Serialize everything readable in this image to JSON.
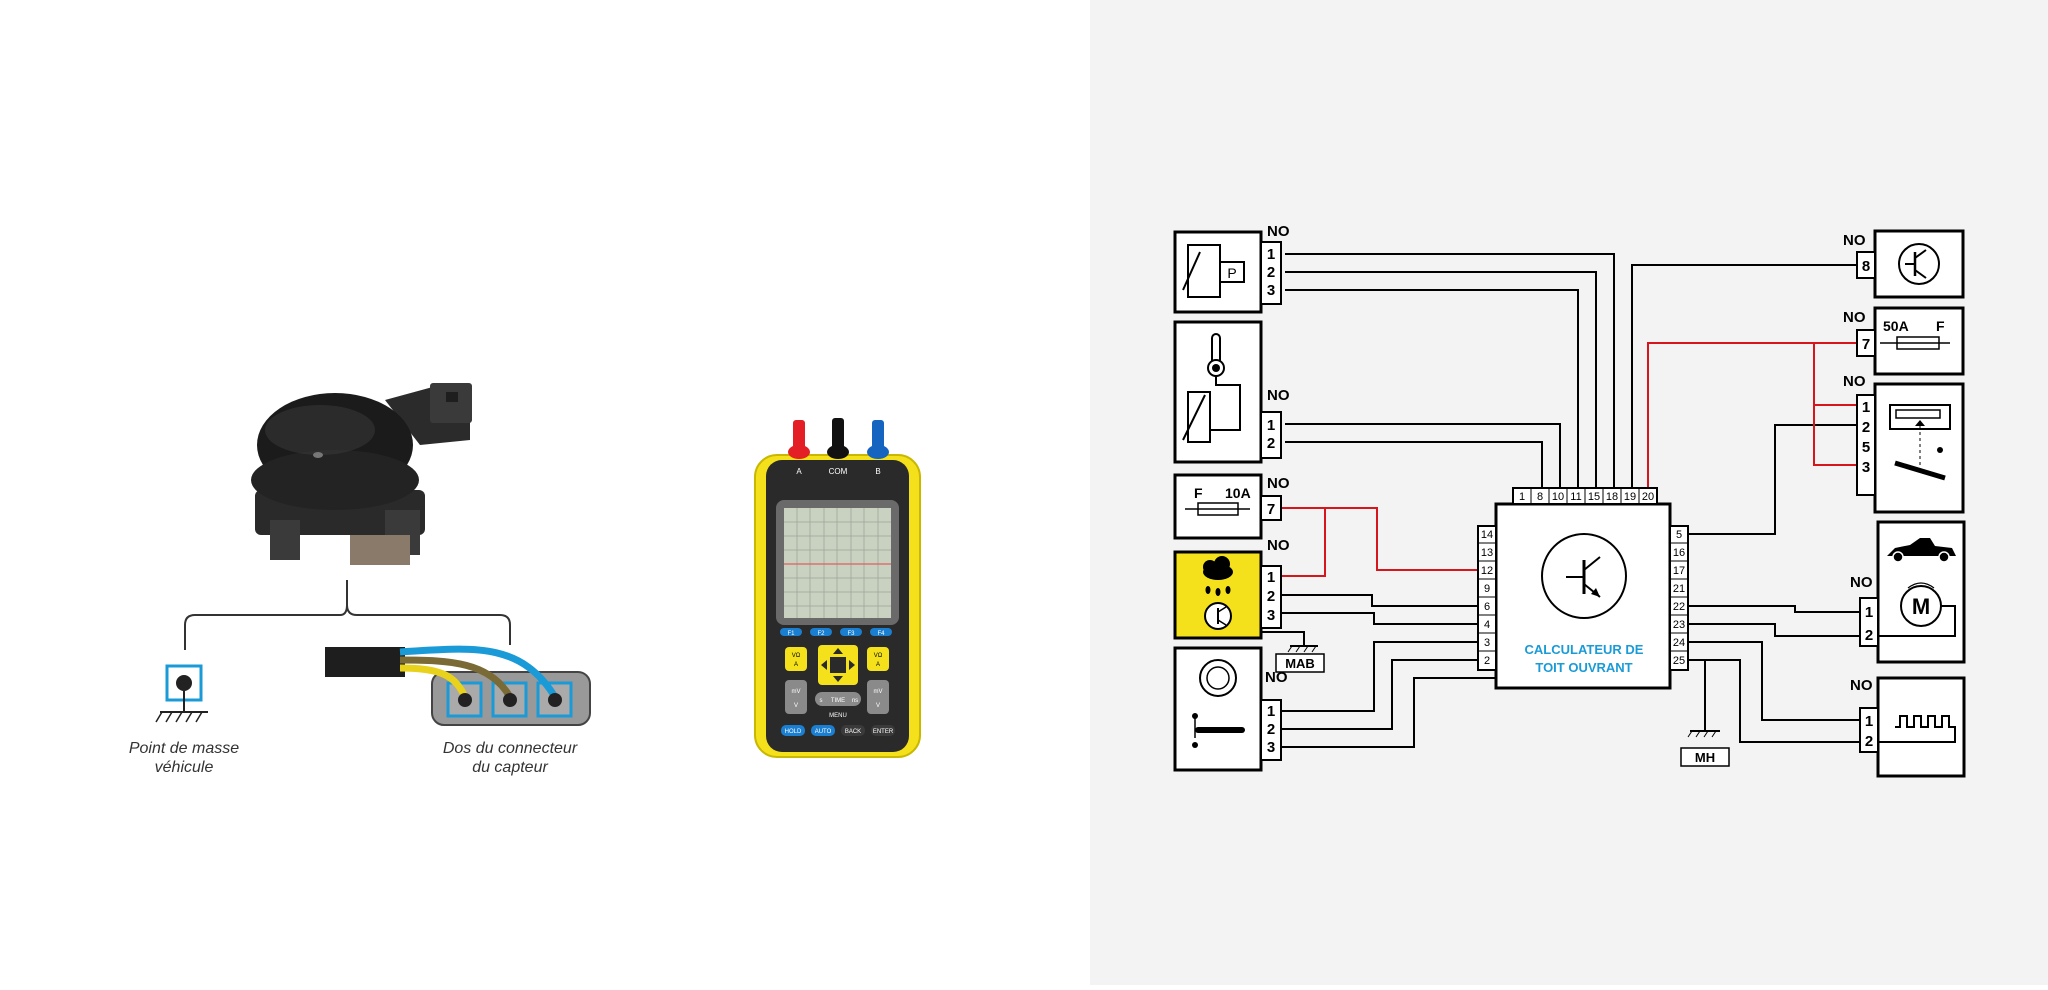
{
  "sensor": {
    "ground_caption": [
      "Point de masse",
      "véhicule"
    ],
    "connector_caption": [
      "Dos du connecteur",
      "du capteur"
    ]
  },
  "multimeter": {
    "probe_labels": [
      "A",
      "COM",
      "B"
    ],
    "fkeys": [
      "F1",
      "F2",
      "F3",
      "F4"
    ],
    "left_top": [
      "VΩ",
      "A"
    ],
    "right_top": [
      "VΩ",
      "A"
    ],
    "left_bottom": [
      "mV",
      "V"
    ],
    "right_bottom": [
      "mV",
      "V"
    ],
    "time_label": "TIME",
    "time_left": "s",
    "time_right": "ns",
    "menu_label": "MENU",
    "bottom_buttons": [
      "HOLD",
      "AUTO",
      "BACK",
      "ENTER"
    ]
  },
  "diagram": {
    "no_label": "NO",
    "ecu_label": [
      "CALCULATEUR DE",
      "TOIT OUVRANT"
    ],
    "ecu_top_pins": [
      "1",
      "8",
      "10",
      "11",
      "15",
      "18",
      "19",
      "20"
    ],
    "ecu_left_pins": [
      "14",
      "13",
      "12",
      "9",
      "6",
      "4",
      "3",
      "2"
    ],
    "ecu_right_pins": [
      "5",
      "16",
      "17",
      "21",
      "22",
      "23",
      "24",
      "25"
    ],
    "pressure_sensor": {
      "label": "P",
      "pins": [
        "1",
        "2",
        "3"
      ]
    },
    "temp_sensor": {
      "pins": [
        "1",
        "2"
      ]
    },
    "fuse_10a": {
      "letter": "F",
      "rating": "10A",
      "pin": "7"
    },
    "rain_sensor": {
      "pins": [
        "1",
        "2",
        "3"
      ]
    },
    "selector": {
      "pins": [
        "1",
        "2",
        "3"
      ]
    },
    "ground_mab": "MAB",
    "ground_mh": "MH",
    "module_8": {
      "pin": "8"
    },
    "fuse_50a": {
      "rating": "50A",
      "letter": "F",
      "pin": "7"
    },
    "position_sensor": {
      "pins": [
        "1",
        "2",
        "5",
        "3"
      ]
    },
    "motor": {
      "label": "M",
      "pins": [
        "1",
        "2"
      ]
    },
    "hall_sensor": {
      "pins": [
        "1",
        "2"
      ]
    },
    "colors": {
      "accent_blue": "#1a9bd7",
      "rain_yellow": "#f4e11c",
      "red_wire": "#d6161c",
      "meter_yellow": "#f4e11c"
    }
  }
}
